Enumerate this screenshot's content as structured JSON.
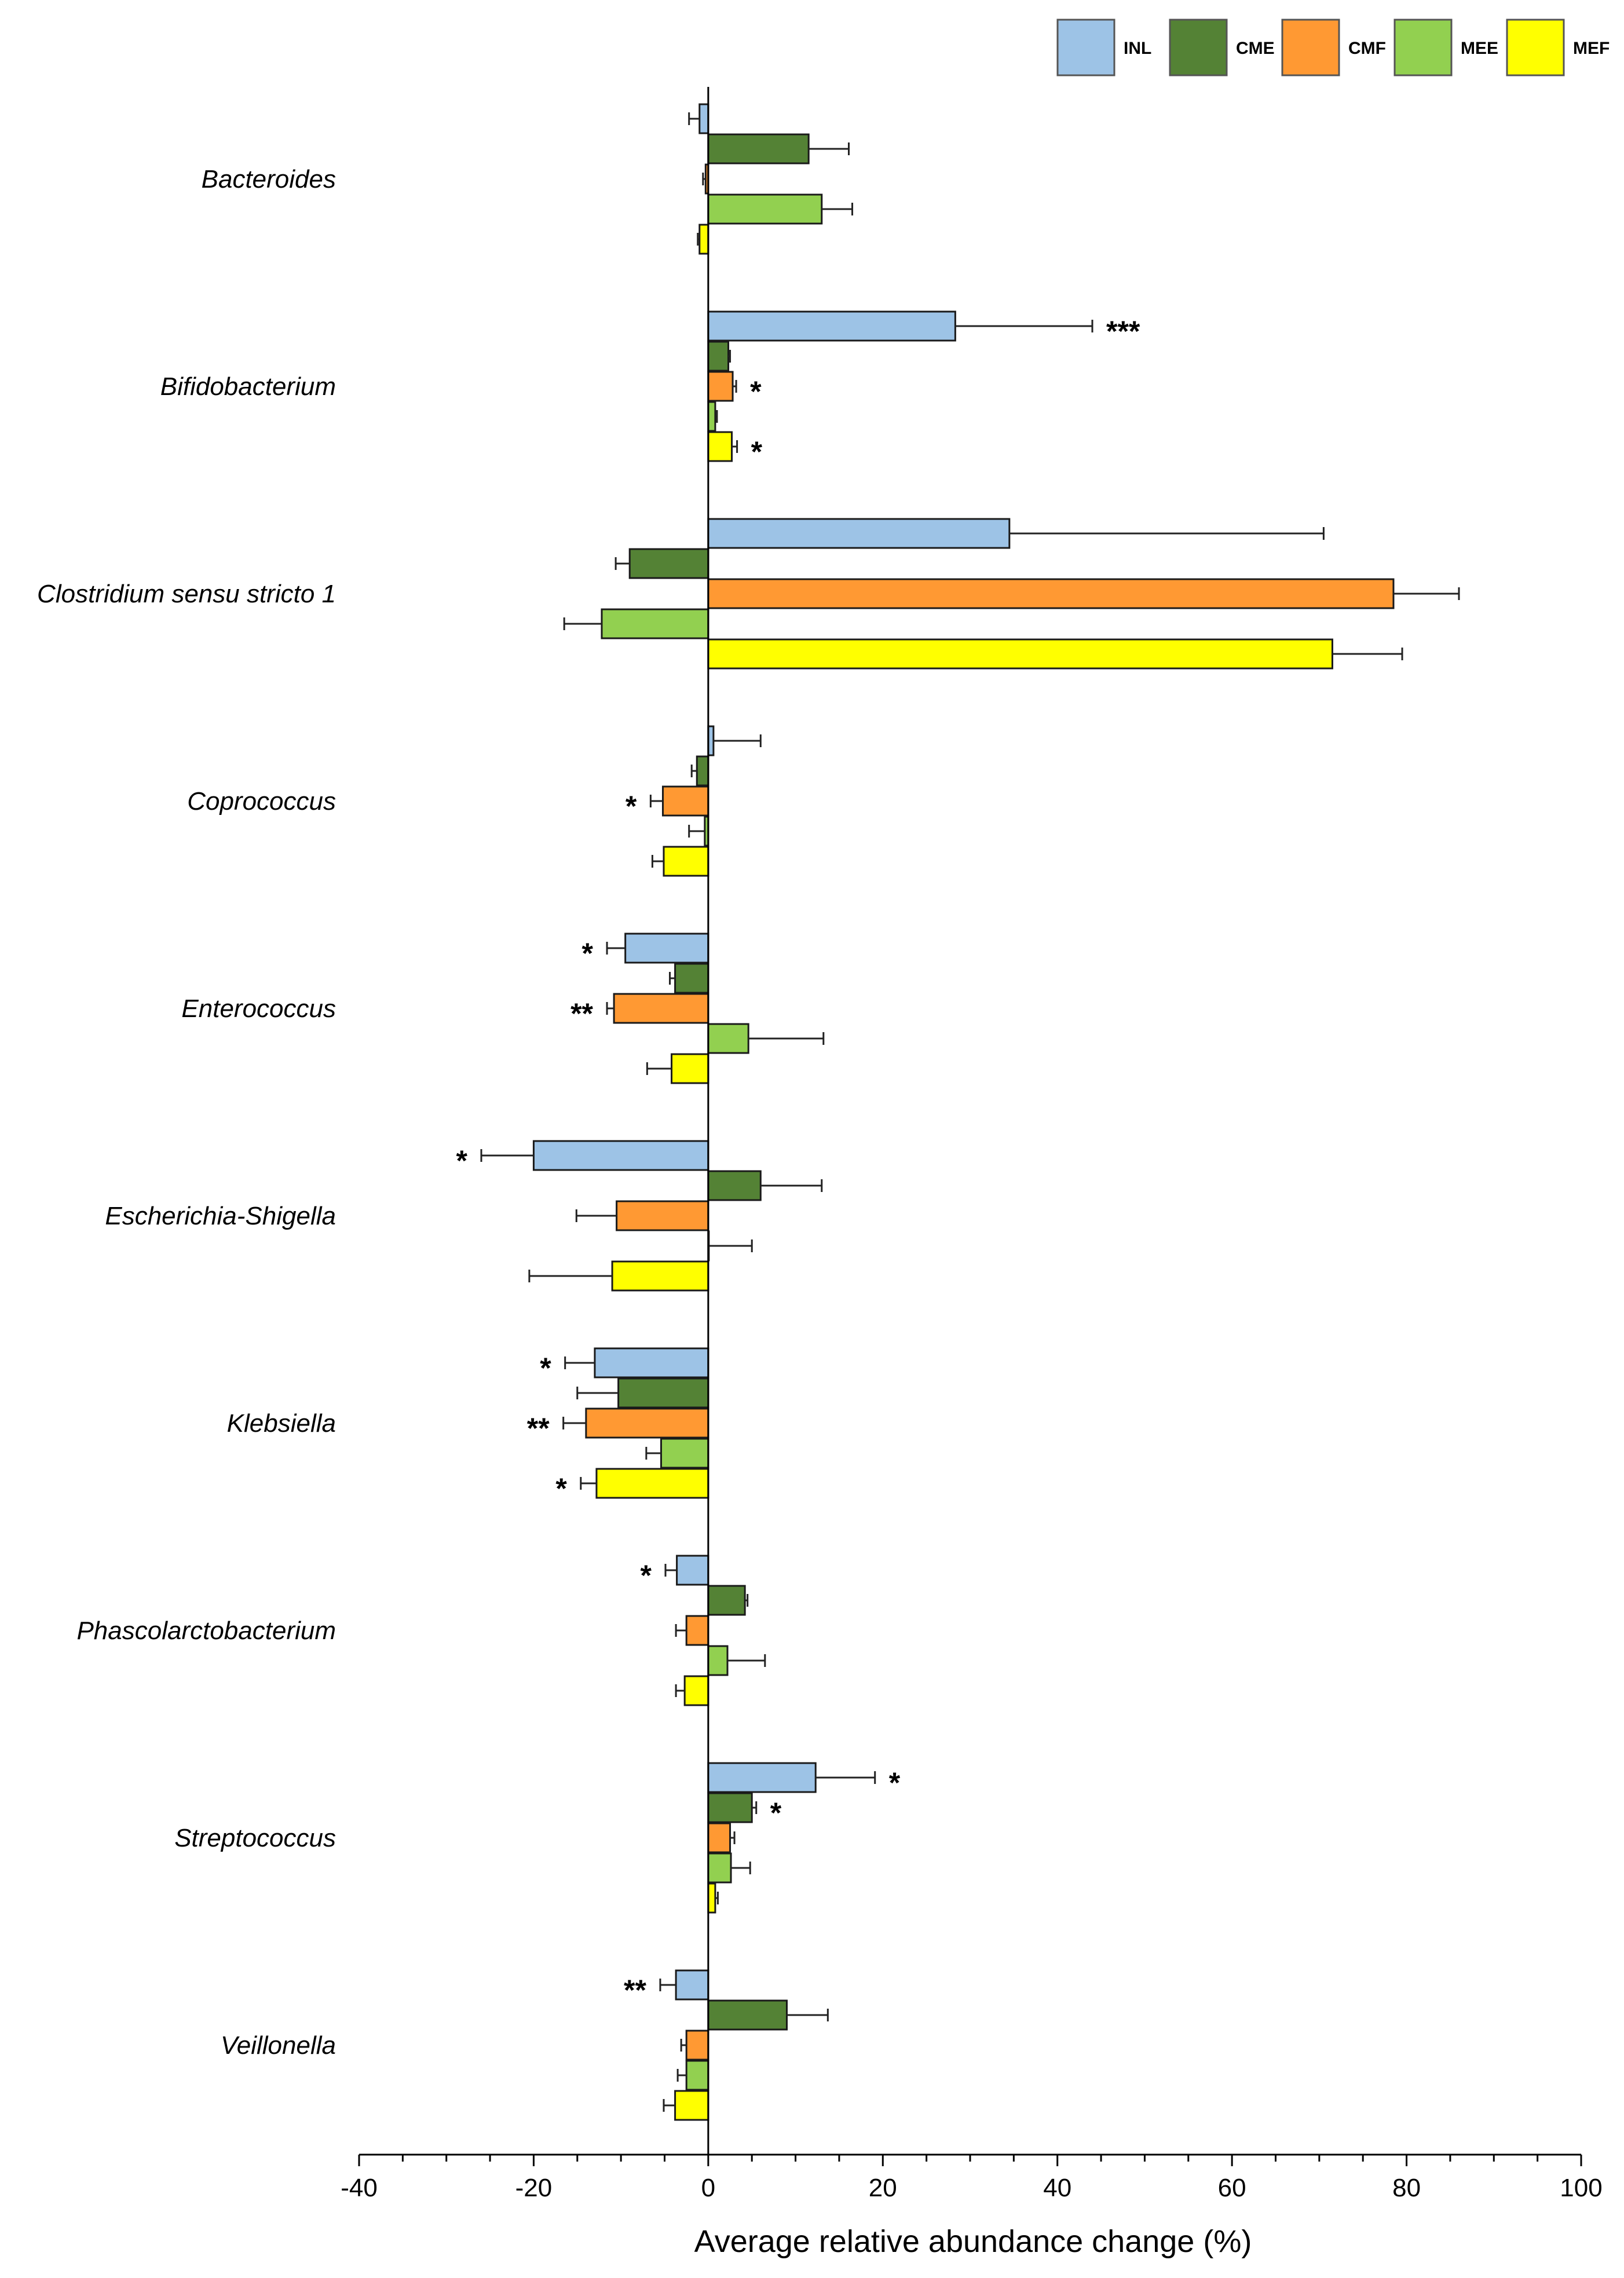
{
  "chart_data": {
    "type": "bar",
    "orientation": "horizontal",
    "title": "",
    "xlabel": "Average relative abundance change (%)",
    "ylabel": "",
    "xlim": [
      -40,
      100
    ],
    "x_ticks": [
      -40,
      -20,
      0,
      20,
      40,
      60,
      80,
      100
    ],
    "grid": false,
    "legend_position": "top-right",
    "categories": [
      "Bacteroides",
      "Bifidobacterium",
      "Clostridium sensu stricto 1",
      "Coprococcus",
      "Enterococcus",
      "Escherichia-Shigella",
      "Klebsiella",
      "Phascolarctobacterium",
      "Streptococcus",
      "Veillonella"
    ],
    "series": [
      {
        "name": "INL",
        "color": "#9DC3E6",
        "values": [
          -1,
          28.3,
          34.5,
          0.6,
          -9.5,
          -20,
          -13,
          -3.6,
          12.3,
          -3.7
        ],
        "errors": [
          1.2,
          15.7,
          36,
          5.4,
          2.1,
          6,
          3.4,
          1.3,
          6.8,
          1.8
        ],
        "significance": [
          "",
          "***",
          "",
          "",
          "*",
          "*",
          "*",
          "*",
          "*",
          "**"
        ]
      },
      {
        "name": "CME",
        "color": "#548235",
        "values": [
          11.5,
          2.3,
          -9,
          -1.3,
          -3.8,
          6,
          -10.3,
          4.2,
          5,
          9
        ],
        "errors": [
          4.6,
          0.2,
          1.6,
          0.6,
          0.6,
          7,
          4.7,
          0.3,
          0.5,
          4.7
        ],
        "significance": [
          "",
          "",
          "",
          "",
          "",
          "",
          "",
          "",
          "*",
          ""
        ]
      },
      {
        "name": "CMF",
        "color": "#FF9933",
        "values": [
          -0.3,
          2.8,
          78.5,
          -5.2,
          -10.8,
          -10.5,
          -14,
          -2.5,
          2.5,
          -2.5
        ],
        "errors": [
          0.3,
          0.4,
          7.5,
          1.4,
          0.8,
          4.6,
          2.6,
          1.2,
          0.5,
          0.6
        ],
        "significance": [
          "",
          "*",
          "",
          "*",
          "**",
          "",
          "**",
          "",
          "",
          ""
        ]
      },
      {
        "name": "MEE",
        "color": "#92D050",
        "values": [
          13,
          0.8,
          -12.2,
          -0.4,
          4.6,
          0,
          -5.4,
          2.2,
          2.6,
          -2.5
        ],
        "errors": [
          3.5,
          0.2,
          4.3,
          1.8,
          8.6,
          5,
          1.7,
          4.3,
          2.2,
          1
        ],
        "significance": [
          "",
          "",
          "",
          "",
          "",
          "",
          "",
          "",
          "",
          ""
        ]
      },
      {
        "name": "MEF",
        "color": "#FFFF00",
        "values": [
          -1,
          2.7,
          71.5,
          -5.1,
          -4.2,
          -11,
          -12.8,
          -2.7,
          0.8,
          -3.8
        ],
        "errors": [
          0.2,
          0.6,
          8,
          1.3,
          2.8,
          9.5,
          1.8,
          1,
          0.3,
          1.3
        ],
        "significance": [
          "",
          "*",
          "",
          "",
          "",
          "",
          "*",
          "",
          "",
          ""
        ]
      }
    ]
  }
}
